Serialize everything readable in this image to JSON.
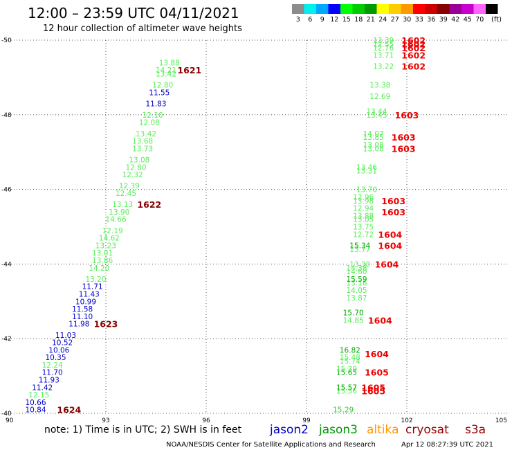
{
  "header": {
    "title": "12:00 – 23:59 UTC 04/11/2021",
    "subtitle": "12 hour collection of altimeter wave heights"
  },
  "legend": {
    "unit": "(ft)",
    "bins": [
      {
        "label": "3",
        "color": "#8c8c8c"
      },
      {
        "label": "6",
        "color": "#00f0f0"
      },
      {
        "label": "9",
        "color": "#00a8ff"
      },
      {
        "label": "12",
        "color": "#0000ff"
      },
      {
        "label": "15",
        "color": "#00ff00"
      },
      {
        "label": "18",
        "color": "#00cc00"
      },
      {
        "label": "21",
        "color": "#009900"
      },
      {
        "label": "24",
        "color": "#ffff00"
      },
      {
        "label": "27",
        "color": "#ffcc00"
      },
      {
        "label": "30",
        "color": "#ff9900"
      },
      {
        "label": "33",
        "color": "#ff0000"
      },
      {
        "label": "36",
        "color": "#cc0000"
      },
      {
        "label": "39",
        "color": "#880000"
      },
      {
        "label": "42",
        "color": "#990099"
      },
      {
        "label": "45",
        "color": "#cc00cc"
      },
      {
        "label": "70",
        "color": "#ff66ff"
      },
      {
        "label": "",
        "color": "#000000"
      }
    ]
  },
  "footer": {
    "note": "note:  1) Time is in UTC;  2) SWH is in feet",
    "credit": "NOAA/NESDIS Center for Satellite Applications and Research",
    "timestamp": "Apr 12 08:27:39 UTC 2021",
    "satellites": [
      {
        "name": "jason2",
        "color": "#0000cc"
      },
      {
        "name": "jason3",
        "color": "#009900"
      },
      {
        "name": "altika",
        "color": "#ff9900"
      },
      {
        "name": "cryosat",
        "color": "#990000"
      },
      {
        "name": "s3a",
        "color": "#990000"
      }
    ]
  },
  "chart_data": {
    "type": "scatter",
    "xlim": [
      90,
      105
    ],
    "ylim": [
      -50,
      -40
    ],
    "x_ticks": [
      "90",
      "93",
      "96",
      "99",
      "102",
      "105"
    ],
    "y_ticks": [
      "-40",
      "-42",
      "-44",
      "-46",
      "-48",
      "-50"
    ],
    "grid": true,
    "points": [
      {
        "x": 90.9,
        "y": -40.1,
        "v": "10.84",
        "c": "#0000cc"
      },
      {
        "x": 90.9,
        "y": -40.3,
        "v": "10.66",
        "c": "#0000cc"
      },
      {
        "x": 91.0,
        "y": -40.5,
        "v": "12.15",
        "c": "#55ee55"
      },
      {
        "x": 91.1,
        "y": -40.7,
        "v": "11.42",
        "c": "#0000cc"
      },
      {
        "x": 91.3,
        "y": -40.9,
        "v": "11.93",
        "c": "#0000cc"
      },
      {
        "x": 91.4,
        "y": -41.1,
        "v": "11.70",
        "c": "#0000cc"
      },
      {
        "x": 91.4,
        "y": -41.3,
        "v": "12.24",
        "c": "#55ee55"
      },
      {
        "x": 91.5,
        "y": -41.5,
        "v": "10.35",
        "c": "#0000cc"
      },
      {
        "x": 91.6,
        "y": -41.7,
        "v": "10.06",
        "c": "#0000cc"
      },
      {
        "x": 91.7,
        "y": -41.9,
        "v": "10.52",
        "c": "#0000cc"
      },
      {
        "x": 91.8,
        "y": -42.1,
        "v": "11.03",
        "c": "#0000cc"
      },
      {
        "x": 92.2,
        "y": -42.4,
        "v": "11.98",
        "c": "#0000cc"
      },
      {
        "x": 92.3,
        "y": -42.6,
        "v": "11.10",
        "c": "#0000cc"
      },
      {
        "x": 92.3,
        "y": -42.8,
        "v": "11.58",
        "c": "#0000cc"
      },
      {
        "x": 92.4,
        "y": -43.0,
        "v": "10.99",
        "c": "#0000cc"
      },
      {
        "x": 92.5,
        "y": -43.2,
        "v": "11.43",
        "c": "#0000cc"
      },
      {
        "x": 92.6,
        "y": -43.4,
        "v": "11.71",
        "c": "#0000cc"
      },
      {
        "x": 92.7,
        "y": -43.6,
        "v": "13.20",
        "c": "#55ee55"
      },
      {
        "x": 92.8,
        "y": -43.9,
        "v": "14.20",
        "c": "#55ee55"
      },
      {
        "x": 92.9,
        "y": -44.1,
        "v": "13.86",
        "c": "#55ee55"
      },
      {
        "x": 92.9,
        "y": -44.3,
        "v": "13.01",
        "c": "#55ee55"
      },
      {
        "x": 93.0,
        "y": -44.5,
        "v": "13.23",
        "c": "#55ee55"
      },
      {
        "x": 93.1,
        "y": -44.7,
        "v": "14.62",
        "c": "#55ee55"
      },
      {
        "x": 93.2,
        "y": -44.9,
        "v": "12.19",
        "c": "#55ee55"
      },
      {
        "x": 93.3,
        "y": -45.2,
        "v": "14.66",
        "c": "#55ee55"
      },
      {
        "x": 93.4,
        "y": -45.4,
        "v": "13.90",
        "c": "#55ee55"
      },
      {
        "x": 93.5,
        "y": -45.6,
        "v": "13.13",
        "c": "#55ee55"
      },
      {
        "x": 93.6,
        "y": -45.9,
        "v": "12.45",
        "c": "#55ee55"
      },
      {
        "x": 93.7,
        "y": -46.1,
        "v": "12.39",
        "c": "#55ee55"
      },
      {
        "x": 93.8,
        "y": -46.4,
        "v": "12.32",
        "c": "#55ee55"
      },
      {
        "x": 93.9,
        "y": -46.6,
        "v": "12.80",
        "c": "#55ee55"
      },
      {
        "x": 94.0,
        "y": -46.8,
        "v": "13.08",
        "c": "#55ee55"
      },
      {
        "x": 94.1,
        "y": -47.1,
        "v": "13.73",
        "c": "#55ee55"
      },
      {
        "x": 94.1,
        "y": -47.3,
        "v": "13.68",
        "c": "#55ee55"
      },
      {
        "x": 94.2,
        "y": -47.5,
        "v": "13.42",
        "c": "#55ee55"
      },
      {
        "x": 94.3,
        "y": -47.8,
        "v": "12.08",
        "c": "#55ee55"
      },
      {
        "x": 94.4,
        "y": -48.0,
        "v": "12.10",
        "c": "#55ee55"
      },
      {
        "x": 94.5,
        "y": -48.3,
        "v": "11.83",
        "c": "#0000cc"
      },
      {
        "x": 94.6,
        "y": -48.6,
        "v": "11.55",
        "c": "#0000cc"
      },
      {
        "x": 94.7,
        "y": -48.8,
        "v": "12.80",
        "c": "#55ee55"
      },
      {
        "x": 94.8,
        "y": -49.1,
        "v": "13.42",
        "c": "#55ee55"
      },
      {
        "x": 94.8,
        "y": -49.2,
        "v": "14.21",
        "c": "#55ee55"
      },
      {
        "x": 94.9,
        "y": -49.4,
        "v": "13.88",
        "c": "#55ee55"
      },
      {
        "x": 100.1,
        "y": -40.1,
        "v": "15.29",
        "c": "#33cc33"
      },
      {
        "x": 100.2,
        "y": -40.6,
        "v": "15.56",
        "c": "#55ee55"
      },
      {
        "x": 100.2,
        "y": -40.7,
        "v": "15.57",
        "c": "#00aa00"
      },
      {
        "x": 100.2,
        "y": -41.1,
        "v": "15.65",
        "c": "#00aa00"
      },
      {
        "x": 100.2,
        "y": -41.2,
        "v": "15.39",
        "c": "#55ee55"
      },
      {
        "x": 100.3,
        "y": -41.4,
        "v": "15.74",
        "c": "#55ee55"
      },
      {
        "x": 100.3,
        "y": -41.5,
        "v": "15.48",
        "c": "#55ee55"
      },
      {
        "x": 100.3,
        "y": -41.7,
        "v": "16.82",
        "c": "#00aa00"
      },
      {
        "x": 100.4,
        "y": -42.5,
        "v": "14.85",
        "c": "#55ee55"
      },
      {
        "x": 100.4,
        "y": -42.7,
        "v": "15.70",
        "c": "#00aa00"
      },
      {
        "x": 100.5,
        "y": -43.1,
        "v": "13.87",
        "c": "#55ee55"
      },
      {
        "x": 100.5,
        "y": -43.3,
        "v": "14.05",
        "c": "#55ee55"
      },
      {
        "x": 100.5,
        "y": -43.5,
        "v": "13.16",
        "c": "#55ee55"
      },
      {
        "x": 100.5,
        "y": -43.6,
        "v": "15.59",
        "c": "#00aa00"
      },
      {
        "x": 100.5,
        "y": -43.8,
        "v": "14.60",
        "c": "#55ee55"
      },
      {
        "x": 100.5,
        "y": -43.9,
        "v": "14.38",
        "c": "#55ee55"
      },
      {
        "x": 100.6,
        "y": -44.0,
        "v": "13.30",
        "c": "#55ee55"
      },
      {
        "x": 100.6,
        "y": -44.4,
        "v": "13.77",
        "c": "#55ee55"
      },
      {
        "x": 100.6,
        "y": -44.5,
        "v": "15.34",
        "c": "#00aa00"
      },
      {
        "x": 100.7,
        "y": -44.8,
        "v": "12.72",
        "c": "#55ee55"
      },
      {
        "x": 100.7,
        "y": -45.0,
        "v": "13.75",
        "c": "#55ee55"
      },
      {
        "x": 100.7,
        "y": -45.2,
        "v": "13.05",
        "c": "#55ee55"
      },
      {
        "x": 100.7,
        "y": -45.3,
        "v": "13.88",
        "c": "#55ee55"
      },
      {
        "x": 100.7,
        "y": -45.5,
        "v": "12.94",
        "c": "#55ee55"
      },
      {
        "x": 100.7,
        "y": -45.7,
        "v": "13.98",
        "c": "#55ee55"
      },
      {
        "x": 100.7,
        "y": -45.8,
        "v": "12.96",
        "c": "#55ee55"
      },
      {
        "x": 100.8,
        "y": -46.0,
        "v": "13.70",
        "c": "#55ee55"
      },
      {
        "x": 100.8,
        "y": -46.5,
        "v": "13.31",
        "c": "#55ee55"
      },
      {
        "x": 100.8,
        "y": -46.6,
        "v": "13.46",
        "c": "#55ee55"
      },
      {
        "x": 101.0,
        "y": -47.1,
        "v": "13.08",
        "c": "#55ee55"
      },
      {
        "x": 101.0,
        "y": -47.2,
        "v": "13.08",
        "c": "#55ee55"
      },
      {
        "x": 101.0,
        "y": -47.4,
        "v": "13.85",
        "c": "#55ee55"
      },
      {
        "x": 101.0,
        "y": -47.5,
        "v": "14.07",
        "c": "#55ee55"
      },
      {
        "x": 101.1,
        "y": -48.0,
        "v": "13.45",
        "c": "#55ee55"
      },
      {
        "x": 101.1,
        "y": -48.1,
        "v": "13.44",
        "c": "#55ee55"
      },
      {
        "x": 101.2,
        "y": -48.5,
        "v": "12.69",
        "c": "#55ee55"
      },
      {
        "x": 101.2,
        "y": -48.8,
        "v": "13.38",
        "c": "#55ee55"
      },
      {
        "x": 101.3,
        "y": -49.3,
        "v": "13.22",
        "c": "#55ee55"
      },
      {
        "x": 101.3,
        "y": -49.6,
        "v": "13.71",
        "c": "#55ee55"
      },
      {
        "x": 101.3,
        "y": -49.8,
        "v": "12.76",
        "c": "#55ee55"
      },
      {
        "x": 101.3,
        "y": -49.9,
        "v": "12.55",
        "c": "#55ee55"
      },
      {
        "x": 101.3,
        "y": -50.0,
        "v": "13.39",
        "c": "#55ee55"
      }
    ],
    "passes": [
      {
        "x": 91.9,
        "y": -40.1,
        "label": "1624",
        "c": "#880000"
      },
      {
        "x": 93.0,
        "y": -42.4,
        "label": "1623",
        "c": "#880000"
      },
      {
        "x": 94.3,
        "y": -45.6,
        "label": "1622",
        "c": "#880000"
      },
      {
        "x": 95.5,
        "y": -49.2,
        "label": "1621",
        "c": "#880000"
      },
      {
        "x": 101.0,
        "y": -40.6,
        "label": "1605",
        "c": "#ee0000"
      },
      {
        "x": 101.0,
        "y": -40.7,
        "label": "1605",
        "c": "#ee0000"
      },
      {
        "x": 101.1,
        "y": -41.1,
        "label": "1605",
        "c": "#ee0000"
      },
      {
        "x": 101.1,
        "y": -41.6,
        "label": "1604",
        "c": "#ee0000"
      },
      {
        "x": 101.2,
        "y": -42.5,
        "label": "1604",
        "c": "#ee0000"
      },
      {
        "x": 101.4,
        "y": -44.0,
        "label": "1604",
        "c": "#ee0000"
      },
      {
        "x": 101.5,
        "y": -44.5,
        "label": "1604",
        "c": "#ee0000"
      },
      {
        "x": 101.5,
        "y": -44.8,
        "label": "1604",
        "c": "#ee0000"
      },
      {
        "x": 101.6,
        "y": -45.4,
        "label": "1603",
        "c": "#ee0000"
      },
      {
        "x": 101.6,
        "y": -45.7,
        "label": "1603",
        "c": "#ee0000"
      },
      {
        "x": 101.9,
        "y": -47.1,
        "label": "1603",
        "c": "#ee0000"
      },
      {
        "x": 101.9,
        "y": -47.4,
        "label": "1603",
        "c": "#ee0000"
      },
      {
        "x": 102.0,
        "y": -48.0,
        "label": "1603",
        "c": "#ee0000"
      },
      {
        "x": 102.2,
        "y": -49.3,
        "label": "1602",
        "c": "#ee0000"
      },
      {
        "x": 102.2,
        "y": -49.6,
        "label": "1602",
        "c": "#ee0000"
      },
      {
        "x": 102.2,
        "y": -49.8,
        "label": "1602",
        "c": "#ee0000"
      },
      {
        "x": 102.2,
        "y": -49.9,
        "label": "1602",
        "c": "#ee0000"
      },
      {
        "x": 102.2,
        "y": -50.0,
        "label": "1602",
        "c": "#ee0000"
      }
    ]
  }
}
